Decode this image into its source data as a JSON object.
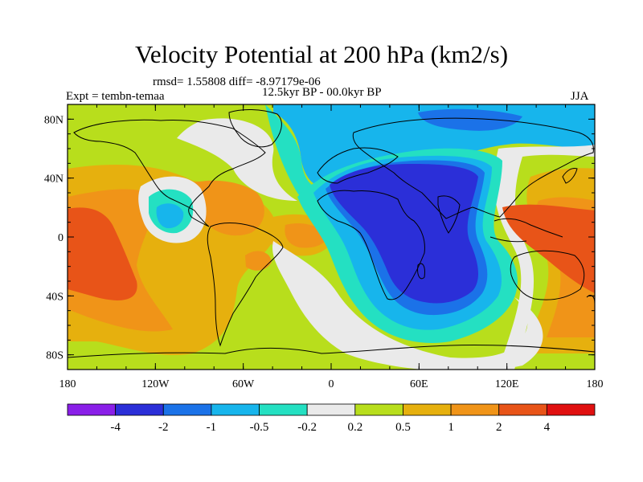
{
  "title": "Velocity Potential at 200 hPa (km2/s)",
  "stats_line": "rmsd= 1.55808 diff= -8.97179e-06",
  "experiment": "Expt = tembn-temaa",
  "period": "12.5kyr BP - 00.0kyr BP",
  "season": "JJA",
  "axes": {
    "lat_labels": [
      "80N",
      "40N",
      "0",
      "40S",
      "80S"
    ],
    "lon_labels": [
      "180",
      "120W",
      "60W",
      "0",
      "60E",
      "120E",
      "180"
    ]
  },
  "colorbar": {
    "colors": [
      "#8a1fe8",
      "#2b2fd8",
      "#1b72e8",
      "#17b5ec",
      "#24e0c2",
      "#eaeaea",
      "#b8de1c",
      "#e6b00e",
      "#f09418",
      "#e85418",
      "#e01010"
    ],
    "labels": [
      "-4",
      "-2",
      "-1",
      "-0.5",
      "-0.2",
      "0.2",
      "0.5",
      "1",
      "2",
      "4"
    ]
  },
  "palette": {
    "very_low": "#2b2fd8",
    "low": "#1b72e8",
    "mid_low": "#17b5ec",
    "near_low": "#24e0c2",
    "neutral": "#eaeaea",
    "near_high": "#b8de1c",
    "mid_high": "#e6b00e",
    "high": "#f09418",
    "very_high": "#e85418"
  }
}
